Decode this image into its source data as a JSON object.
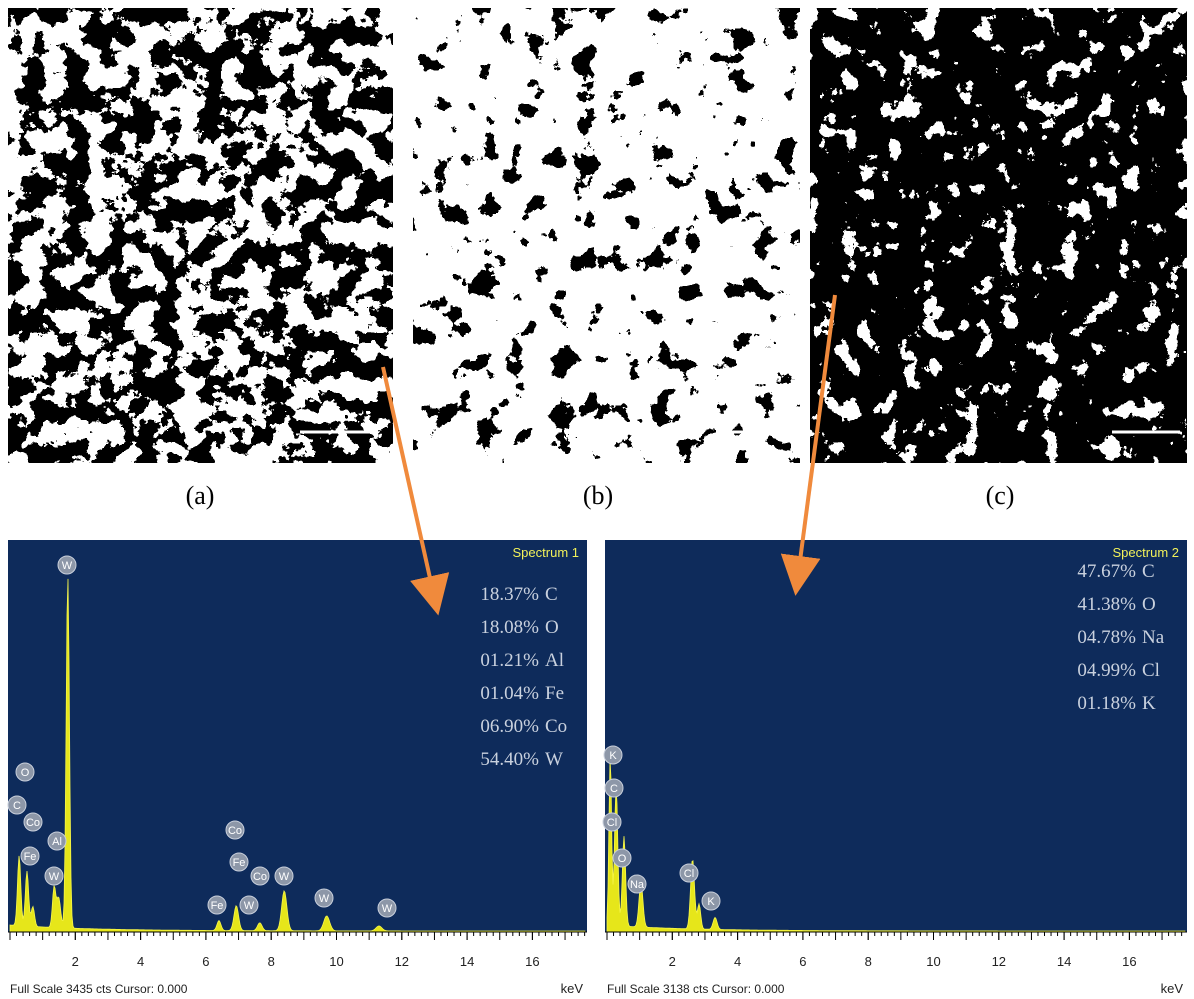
{
  "panels": [
    {
      "caption": "(a)"
    },
    {
      "caption": "(b)"
    },
    {
      "caption": "(c)"
    }
  ],
  "spectra": [
    {
      "title": "Spectrum 1",
      "composition": [
        {
          "percent": "18.37%",
          "element": "C"
        },
        {
          "percent": "18.08%",
          "element": "O"
        },
        {
          "percent": "01.21%",
          "element": "Al"
        },
        {
          "percent": "01.04%",
          "element": "Fe"
        },
        {
          "percent": "06.90%",
          "element": "Co"
        },
        {
          "percent": "54.40%",
          "element": "W"
        }
      ],
      "x_ticks": [
        2,
        4,
        6,
        8,
        10,
        12,
        14,
        16
      ],
      "unit": "keV",
      "footer": "Full Scale 3435 cts Cursor: 0.000",
      "peak_labels": [
        "W",
        "O",
        "C",
        "Co",
        "Fe",
        "Al",
        "W",
        "Co",
        "Fe",
        "Co",
        "W",
        "W",
        "Fe",
        "W",
        "W"
      ]
    },
    {
      "title": "Spectrum 2",
      "composition": [
        {
          "percent": "47.67%",
          "element": "C"
        },
        {
          "percent": "41.38%",
          "element": "O"
        },
        {
          "percent": "04.78%",
          "element": "Na"
        },
        {
          "percent": "04.99%",
          "element": "Cl"
        },
        {
          "percent": "01.18%",
          "element": "K"
        }
      ],
      "x_ticks": [
        2,
        4,
        6,
        8,
        10,
        12,
        14,
        16
      ],
      "unit": "keV",
      "footer": "Full Scale 3138 cts Cursor: 0.000",
      "peak_labels": [
        "K",
        "C",
        "Cl",
        "O",
        "Na",
        "Cl",
        "K"
      ]
    }
  ]
}
